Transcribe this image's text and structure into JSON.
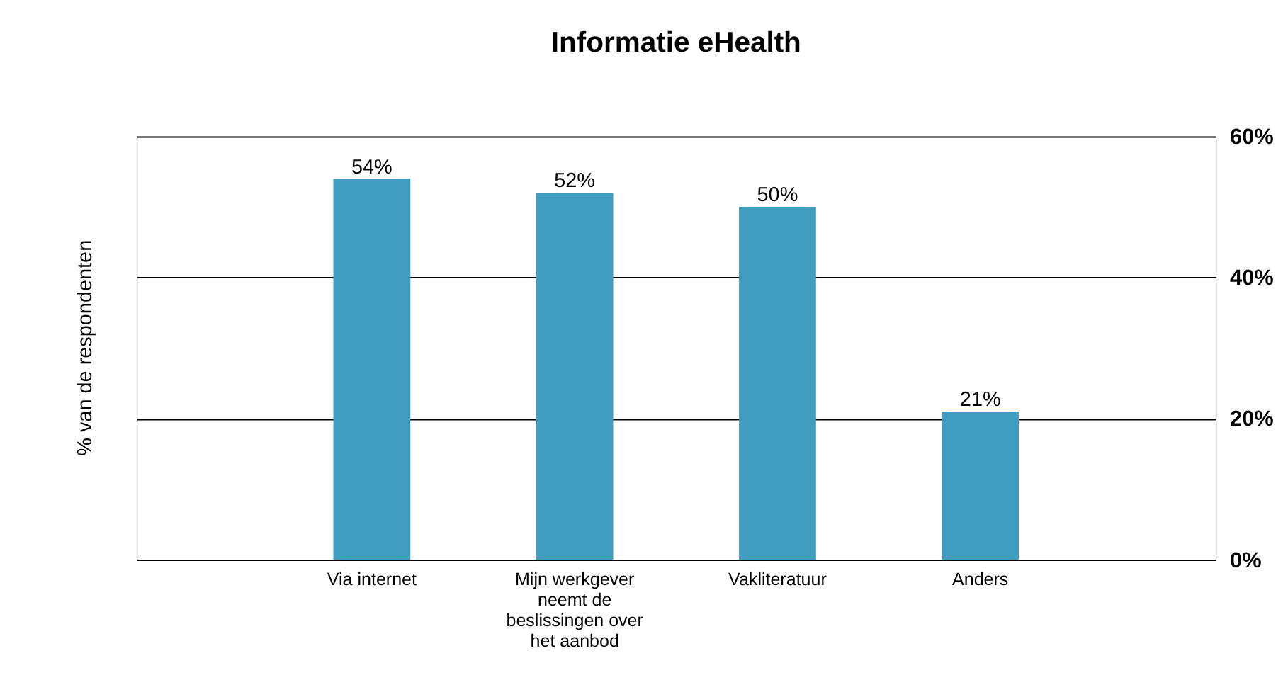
{
  "chart_data": {
    "type": "bar",
    "title": "Informatie eHealth",
    "ylabel": "% van de respondenten",
    "categories": [
      "Via internet",
      "Mijn werkgever neemt de beslissingen over het aanbod",
      "Vakliteratuur",
      "Anders"
    ],
    "values": [
      54,
      52,
      50,
      21
    ],
    "color": "#3f9ebf",
    "value_labels": [
      "54%",
      "52%",
      "50%",
      "21%"
    ],
    "ylim": [
      0,
      60
    ],
    "yticks": [
      {
        "value": 0,
        "label": "0%"
      },
      {
        "value": 20,
        "label": "20%"
      },
      {
        "value": 40,
        "label": "40%"
      },
      {
        "value": 60,
        "label": "60%"
      }
    ],
    "grid": "y"
  }
}
